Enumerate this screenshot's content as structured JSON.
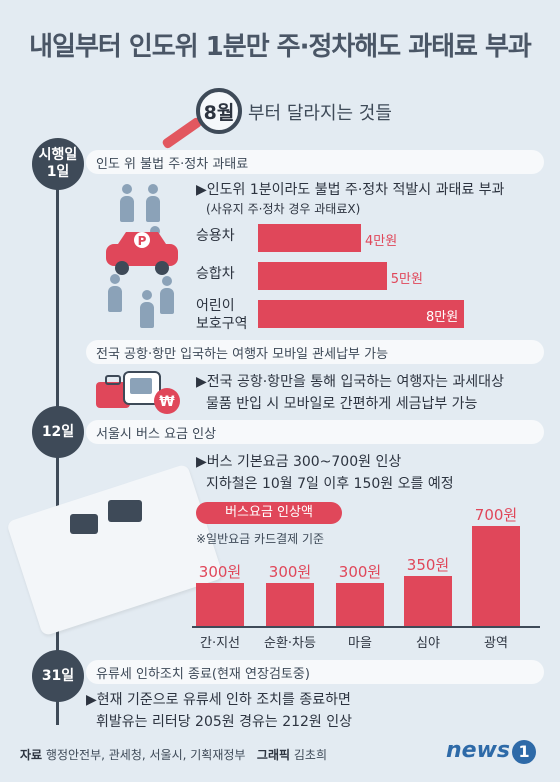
{
  "title": "내일부터 인도위 1분만 주·정차해도 과태료 부과",
  "subtitle": {
    "highlight": "8월",
    "rest": "부터 달라지는 것들"
  },
  "sections": [
    {
      "date_line1": "시행일",
      "date_line2": "1일",
      "label": "인도 위 불법 주·정차 과태료",
      "desc_lines": [
        "▶인도위 1분이라도 불법 주·정차 적발시 과태료 부과",
        "(사유지 주·정차 경우 과태료X)"
      ],
      "car_sign": "P"
    },
    {
      "label": "전국 공항·항만 입국하는 여행자 모바일 관세납부 가능",
      "desc_lines": [
        "▶전국 공항·항만을 통해 입국하는 여행자는 과세대상",
        "물품 반입 시 모바일로 간편하게 세금납부 가능"
      ],
      "coin_symbol": "₩"
    },
    {
      "date_line1": "12일",
      "label": "서울시 버스 요금 인상",
      "desc_lines": [
        "▶버스 기본요금 300~700원 인상",
        "지하철은 10월 7일 이후 150원 오를 예정"
      ],
      "chart_tag": "버스요금 인상액",
      "chart_note": "※일반요금 카드결제 기준"
    },
    {
      "date_line1": "31일",
      "label": "유류세 인하조치 종료(현재 연장검토중)",
      "desc_lines": [
        "▶현재 기준으로 유류세 인하 조치를 종료하면",
        "휘발유는 리터당 205원 경유는 212원 인상"
      ]
    }
  ],
  "fine_chart": {
    "categories": [
      "승용차",
      "승합차",
      "어린이\n보호구역"
    ],
    "values": [
      4,
      5,
      8
    ],
    "value_labels": [
      "4만원",
      "5만원",
      "8만원"
    ],
    "max": 8
  },
  "chart_data": {
    "type": "bar",
    "categories": [
      "간·지선",
      "순환·차등",
      "마을",
      "심야",
      "광역"
    ],
    "values": [
      300,
      300,
      300,
      350,
      700
    ],
    "value_labels": [
      "300원",
      "300원",
      "300원",
      "350원",
      "700원"
    ],
    "title": "버스요금 인상액",
    "ylim": [
      0,
      700
    ]
  },
  "footer": {
    "source_label": "자료",
    "source": "행정안전부, 관세청, 서울시, 기획재정부",
    "graphic_label": "그래픽",
    "graphic": "김초희",
    "logo_text": "news",
    "logo_num": "1"
  },
  "colors": {
    "accent": "#e0475a",
    "navy": "#3e4a58",
    "background": "#e3ebf2"
  }
}
